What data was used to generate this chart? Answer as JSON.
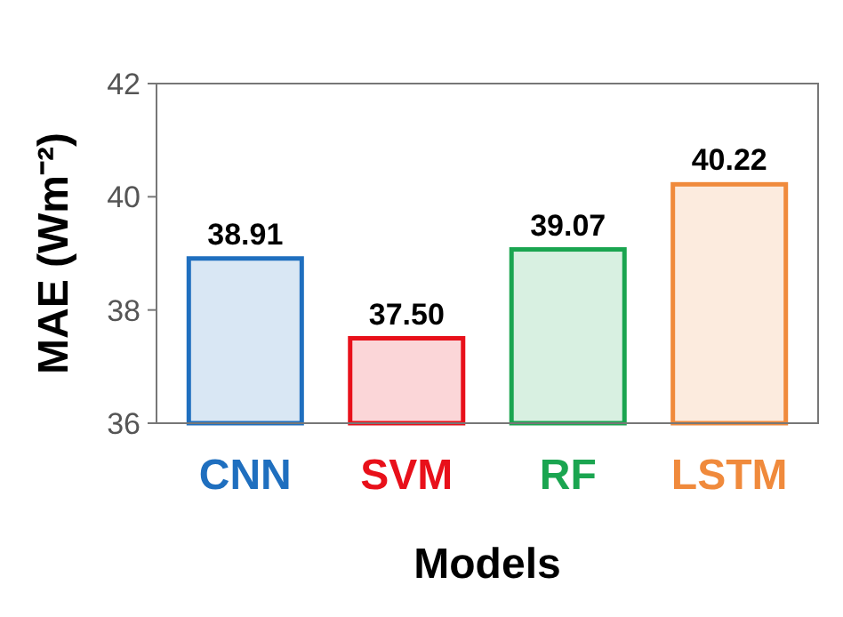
{
  "chart_data": {
    "type": "bar",
    "xlabel": "Models",
    "ylabel": "MAE (Wm⁻²)",
    "categories": [
      "CNN",
      "SVM",
      "RF",
      "LSTM"
    ],
    "values": [
      38.91,
      37.5,
      39.07,
      40.22
    ],
    "value_labels": [
      "38.91",
      "37.50",
      "39.07",
      "40.22"
    ],
    "colors": [
      "#1f6fbf",
      "#e8101a",
      "#1aa550",
      "#f08a3c"
    ],
    "ylim": [
      36,
      42
    ],
    "yticks": [
      36,
      38,
      40,
      42
    ],
    "grid": false
  }
}
